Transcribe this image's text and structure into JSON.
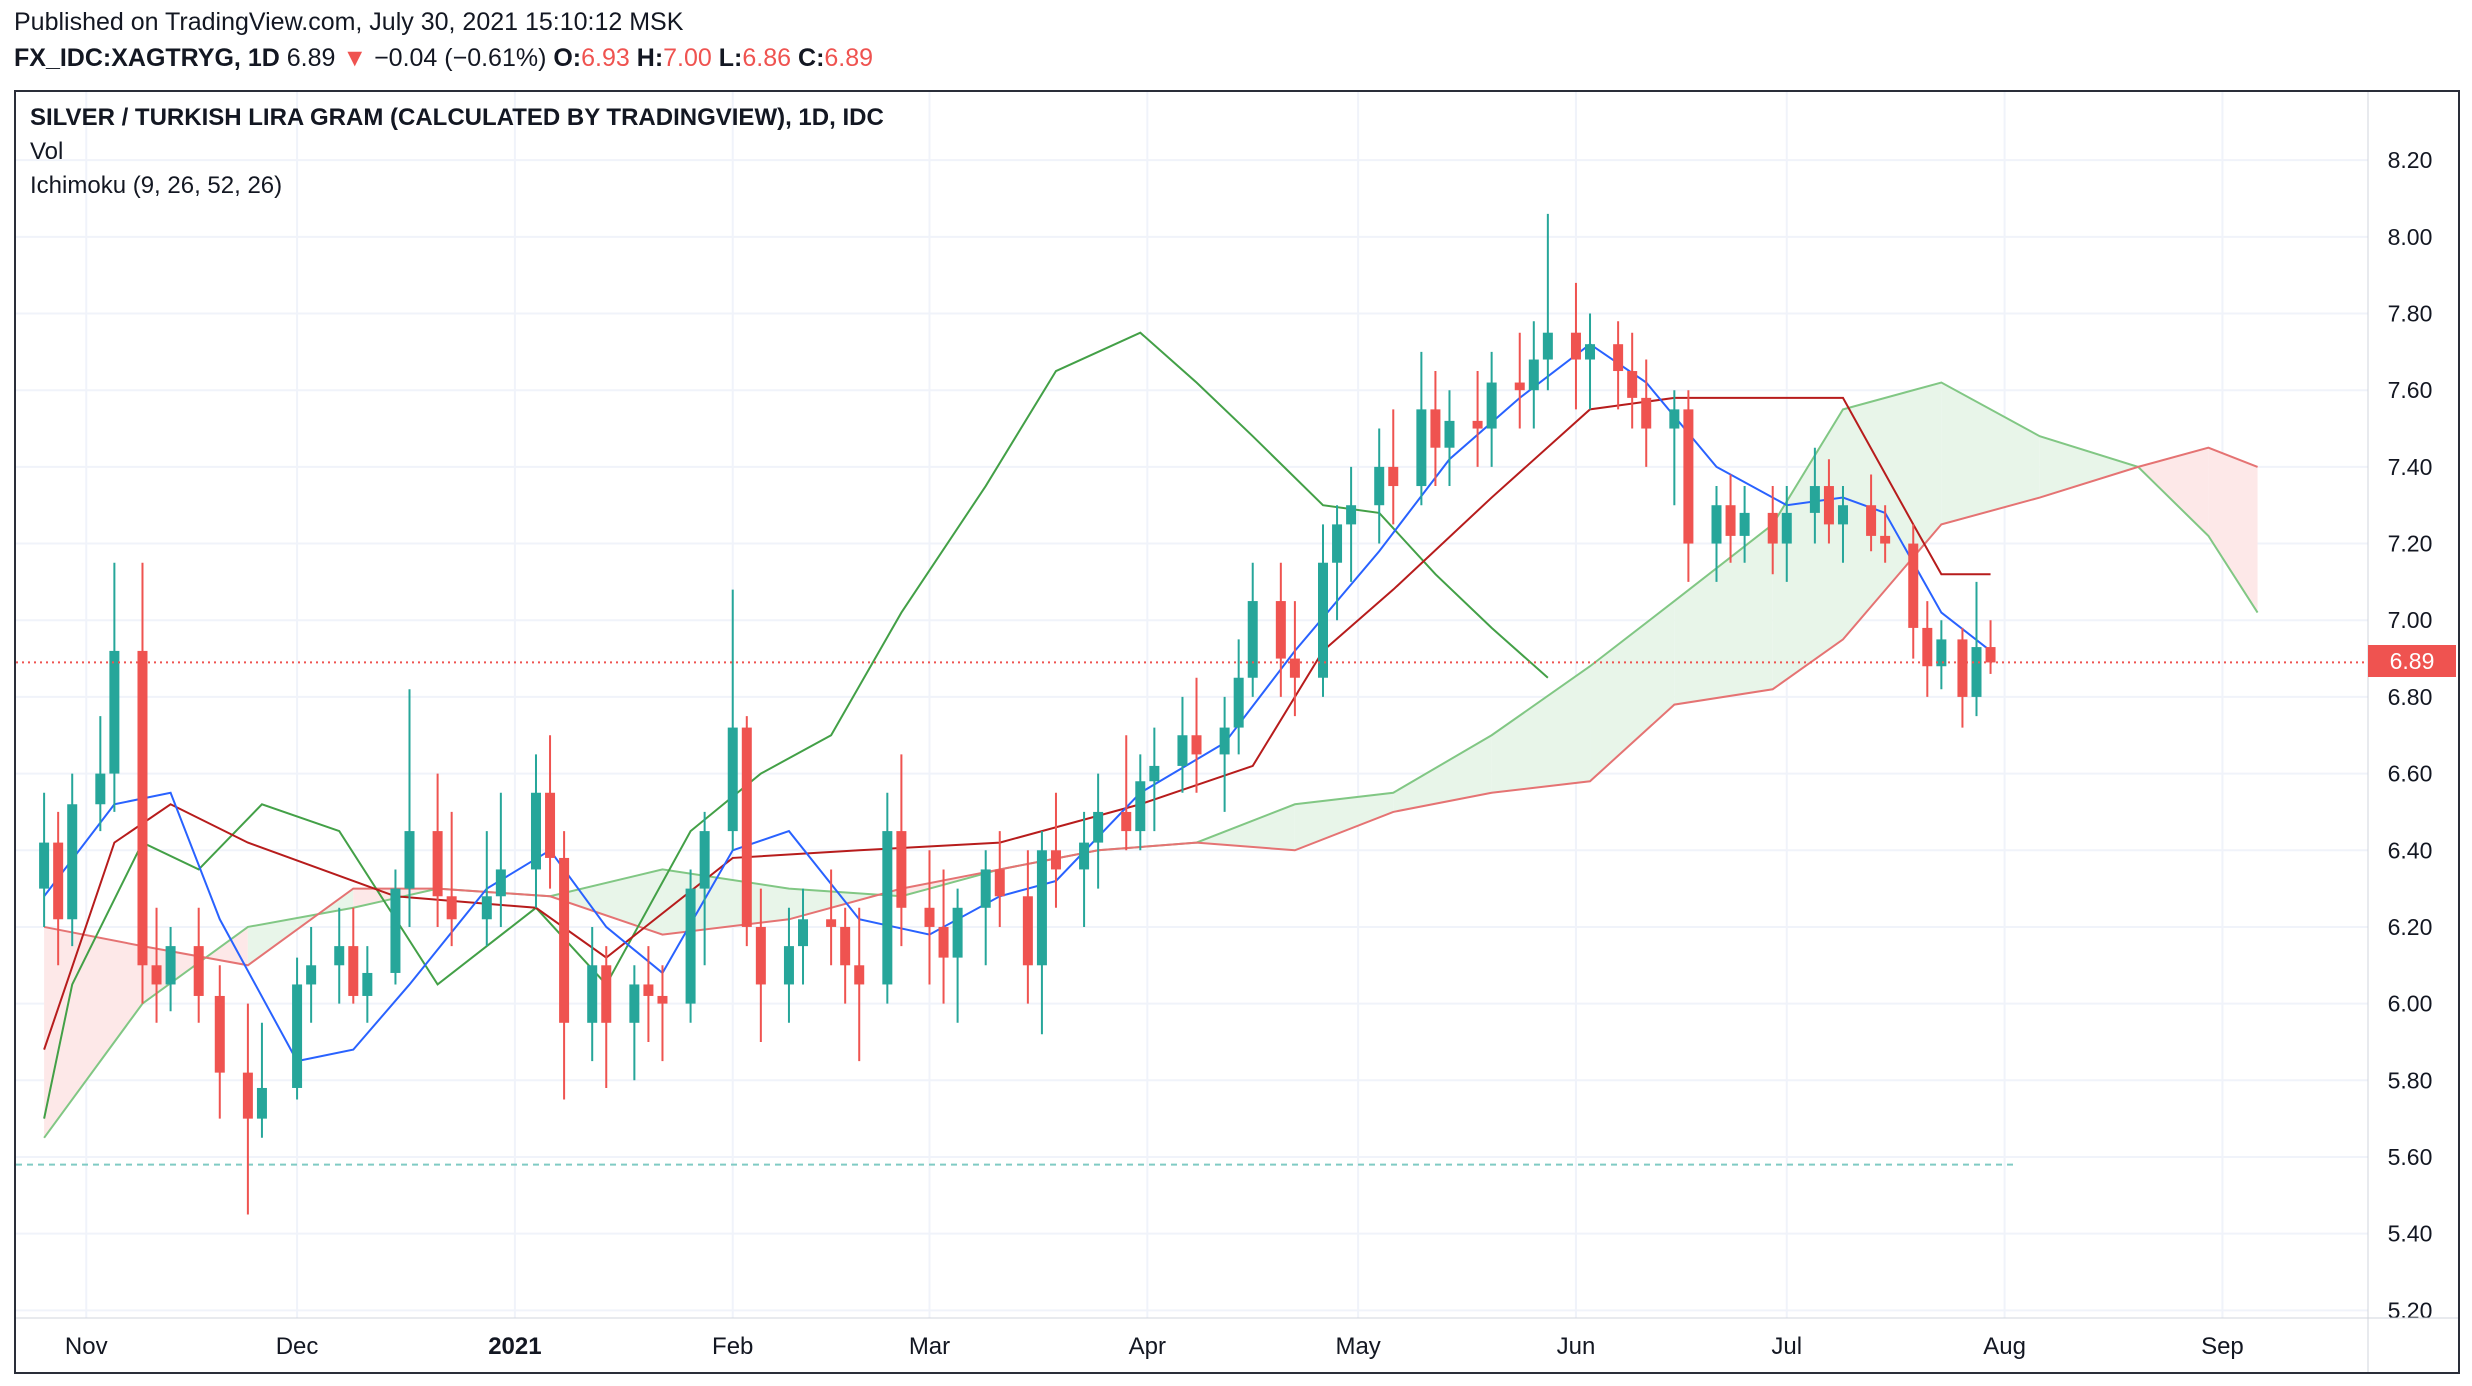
{
  "header": {
    "published": "Published on TradingView.com, July 30, 2021 15:10:12 MSK",
    "symbol": "FX_IDC:XAGTRYG, 1D",
    "last": "6.89",
    "change_arrow": "▼",
    "change": "−0.04 (−0.61%)",
    "o_label": "O:",
    "o": "6.93",
    "h_label": "H:",
    "h": "7.00",
    "l_label": "L:",
    "l": "6.86",
    "c_label": "C:",
    "c": "6.89"
  },
  "legend": {
    "title": "SILVER / TURKISH LIRA GRAM (CALCULATED BY TRADINGVIEW), 1D, IDC",
    "vol": "Vol",
    "ichimoku": "Ichimoku (9, 26, 52, 26)"
  },
  "colors": {
    "up": "#26a69a",
    "down": "#ef5350",
    "conversion": "#2962ff",
    "base": "#b71c1c",
    "lagging": "#43a047",
    "cloud_bull": "#e8f5e9",
    "cloud_bear": "#fde8e8",
    "grid": "#f0f3fa",
    "last_price_line": "#ef5350"
  },
  "chart_data": {
    "type": "candlestick",
    "title": "SILVER / TURKISH LIRA GRAM (CALCULATED BY TRADINGVIEW), 1D, IDC",
    "ylim": [
      5.2,
      8.3
    ],
    "y_ticks": [
      "5.20",
      "5.40",
      "5.60",
      "5.80",
      "6.00",
      "6.20",
      "6.40",
      "6.60",
      "6.80",
      "7.00",
      "7.20",
      "7.40",
      "7.60",
      "7.80",
      "8.00",
      "8.20"
    ],
    "x_ticks": [
      "Nov",
      "Dec",
      "2021",
      "Feb",
      "Mar",
      "Apr",
      "May",
      "Jun",
      "Jul",
      "Aug",
      "Sep"
    ],
    "last_price": 6.89,
    "last_price_label": "6.89",
    "dashed_level": 5.58,
    "candles": [
      {
        "t": "2020-10-26",
        "o": 6.3,
        "h": 6.55,
        "l": 6.2,
        "c": 6.42
      },
      {
        "t": "2020-10-28",
        "o": 6.42,
        "h": 6.5,
        "l": 6.1,
        "c": 6.22
      },
      {
        "t": "2020-10-30",
        "o": 6.22,
        "h": 6.6,
        "l": 6.15,
        "c": 6.52
      },
      {
        "t": "2020-11-03",
        "o": 6.52,
        "h": 6.75,
        "l": 6.45,
        "c": 6.6
      },
      {
        "t": "2020-11-05",
        "o": 6.6,
        "h": 7.15,
        "l": 6.5,
        "c": 6.92
      },
      {
        "t": "2020-11-09",
        "o": 6.92,
        "h": 7.15,
        "l": 6.0,
        "c": 6.1
      },
      {
        "t": "2020-11-11",
        "o": 6.1,
        "h": 6.25,
        "l": 5.95,
        "c": 6.05
      },
      {
        "t": "2020-11-13",
        "o": 6.05,
        "h": 6.2,
        "l": 5.98,
        "c": 6.15
      },
      {
        "t": "2020-11-17",
        "o": 6.15,
        "h": 6.25,
        "l": 5.95,
        "c": 6.02
      },
      {
        "t": "2020-11-20",
        "o": 6.02,
        "h": 6.1,
        "l": 5.7,
        "c": 5.82
      },
      {
        "t": "2020-11-24",
        "o": 5.82,
        "h": 6.0,
        "l": 5.45,
        "c": 5.7
      },
      {
        "t": "2020-11-26",
        "o": 5.7,
        "h": 5.95,
        "l": 5.65,
        "c": 5.78
      },
      {
        "t": "2020-12-01",
        "o": 5.78,
        "h": 6.12,
        "l": 5.75,
        "c": 6.05
      },
      {
        "t": "2020-12-03",
        "o": 6.05,
        "h": 6.2,
        "l": 5.95,
        "c": 6.1
      },
      {
        "t": "2020-12-07",
        "o": 6.1,
        "h": 6.25,
        "l": 6.0,
        "c": 6.15
      },
      {
        "t": "2020-12-09",
        "o": 6.15,
        "h": 6.25,
        "l": 6.0,
        "c": 6.02
      },
      {
        "t": "2020-12-11",
        "o": 6.02,
        "h": 6.15,
        "l": 5.95,
        "c": 6.08
      },
      {
        "t": "2020-12-15",
        "o": 6.08,
        "h": 6.35,
        "l": 6.05,
        "c": 6.3
      },
      {
        "t": "2020-12-17",
        "o": 6.3,
        "h": 6.82,
        "l": 6.2,
        "c": 6.45
      },
      {
        "t": "2020-12-21",
        "o": 6.45,
        "h": 6.6,
        "l": 6.2,
        "c": 6.28
      },
      {
        "t": "2020-12-23",
        "o": 6.28,
        "h": 6.5,
        "l": 6.15,
        "c": 6.22
      },
      {
        "t": "2020-12-28",
        "o": 6.22,
        "h": 6.45,
        "l": 6.15,
        "c": 6.28
      },
      {
        "t": "2020-12-30",
        "o": 6.28,
        "h": 6.55,
        "l": 6.2,
        "c": 6.35
      },
      {
        "t": "2021-01-04",
        "o": 6.35,
        "h": 6.65,
        "l": 6.25,
        "c": 6.55
      },
      {
        "t": "2021-01-06",
        "o": 6.55,
        "h": 6.7,
        "l": 6.3,
        "c": 6.38
      },
      {
        "t": "2021-01-08",
        "o": 6.38,
        "h": 6.45,
        "l": 5.75,
        "c": 5.95
      },
      {
        "t": "2021-01-12",
        "o": 5.95,
        "h": 6.2,
        "l": 5.85,
        "c": 6.1
      },
      {
        "t": "2021-01-14",
        "o": 6.1,
        "h": 6.15,
        "l": 5.78,
        "c": 5.95
      },
      {
        "t": "2021-01-18",
        "o": 5.95,
        "h": 6.1,
        "l": 5.8,
        "c": 6.05
      },
      {
        "t": "2021-01-20",
        "o": 6.05,
        "h": 6.15,
        "l": 5.9,
        "c": 6.02
      },
      {
        "t": "2021-01-22",
        "o": 6.02,
        "h": 6.1,
        "l": 5.85,
        "c": 6.0
      },
      {
        "t": "2021-01-26",
        "o": 6.0,
        "h": 6.35,
        "l": 5.95,
        "c": 6.3
      },
      {
        "t": "2021-01-28",
        "o": 6.3,
        "h": 6.5,
        "l": 6.1,
        "c": 6.45
      },
      {
        "t": "2021-02-01",
        "o": 6.45,
        "h": 7.08,
        "l": 6.4,
        "c": 6.72
      },
      {
        "t": "2021-02-03",
        "o": 6.72,
        "h": 6.75,
        "l": 6.15,
        "c": 6.2
      },
      {
        "t": "2021-02-05",
        "o": 6.2,
        "h": 6.3,
        "l": 5.9,
        "c": 6.05
      },
      {
        "t": "2021-02-09",
        "o": 6.05,
        "h": 6.25,
        "l": 5.95,
        "c": 6.15
      },
      {
        "t": "2021-02-11",
        "o": 6.15,
        "h": 6.3,
        "l": 6.05,
        "c": 6.22
      },
      {
        "t": "2021-02-15",
        "o": 6.22,
        "h": 6.35,
        "l": 6.1,
        "c": 6.2
      },
      {
        "t": "2021-02-17",
        "o": 6.2,
        "h": 6.25,
        "l": 6.0,
        "c": 6.1
      },
      {
        "t": "2021-02-19",
        "o": 6.1,
        "h": 6.25,
        "l": 5.85,
        "c": 6.05
      },
      {
        "t": "2021-02-23",
        "o": 6.05,
        "h": 6.55,
        "l": 6.0,
        "c": 6.45
      },
      {
        "t": "2021-02-25",
        "o": 6.45,
        "h": 6.65,
        "l": 6.15,
        "c": 6.25
      },
      {
        "t": "2021-03-01",
        "o": 6.25,
        "h": 6.4,
        "l": 6.05,
        "c": 6.2
      },
      {
        "t": "2021-03-03",
        "o": 6.2,
        "h": 6.35,
        "l": 6.0,
        "c": 6.12
      },
      {
        "t": "2021-03-05",
        "o": 6.12,
        "h": 6.3,
        "l": 5.95,
        "c": 6.25
      },
      {
        "t": "2021-03-09",
        "o": 6.25,
        "h": 6.4,
        "l": 6.1,
        "c": 6.35
      },
      {
        "t": "2021-03-11",
        "o": 6.35,
        "h": 6.45,
        "l": 6.2,
        "c": 6.28
      },
      {
        "t": "2021-03-15",
        "o": 6.28,
        "h": 6.4,
        "l": 6.0,
        "c": 6.1
      },
      {
        "t": "2021-03-17",
        "o": 6.1,
        "h": 6.45,
        "l": 5.92,
        "c": 6.4
      },
      {
        "t": "2021-03-19",
        "o": 6.4,
        "h": 6.55,
        "l": 6.25,
        "c": 6.35
      },
      {
        "t": "2021-03-23",
        "o": 6.35,
        "h": 6.5,
        "l": 6.2,
        "c": 6.42
      },
      {
        "t": "2021-03-25",
        "o": 6.42,
        "h": 6.6,
        "l": 6.3,
        "c": 6.5
      },
      {
        "t": "2021-03-29",
        "o": 6.5,
        "h": 6.7,
        "l": 6.4,
        "c": 6.45
      },
      {
        "t": "2021-03-31",
        "o": 6.45,
        "h": 6.65,
        "l": 6.4,
        "c": 6.58
      },
      {
        "t": "2021-04-02",
        "o": 6.58,
        "h": 6.72,
        "l": 6.45,
        "c": 6.62
      },
      {
        "t": "2021-04-06",
        "o": 6.62,
        "h": 6.8,
        "l": 6.55,
        "c": 6.7
      },
      {
        "t": "2021-04-08",
        "o": 6.7,
        "h": 6.85,
        "l": 6.55,
        "c": 6.65
      },
      {
        "t": "2021-04-12",
        "o": 6.65,
        "h": 6.8,
        "l": 6.5,
        "c": 6.72
      },
      {
        "t": "2021-04-14",
        "o": 6.72,
        "h": 6.95,
        "l": 6.65,
        "c": 6.85
      },
      {
        "t": "2021-04-16",
        "o": 6.85,
        "h": 7.15,
        "l": 6.8,
        "c": 7.05
      },
      {
        "t": "2021-04-20",
        "o": 7.05,
        "h": 7.15,
        "l": 6.8,
        "c": 6.9
      },
      {
        "t": "2021-04-22",
        "o": 6.9,
        "h": 7.05,
        "l": 6.75,
        "c": 6.85
      },
      {
        "t": "2021-04-26",
        "o": 6.85,
        "h": 7.25,
        "l": 6.8,
        "c": 7.15
      },
      {
        "t": "2021-04-28",
        "o": 7.15,
        "h": 7.3,
        "l": 7.0,
        "c": 7.25
      },
      {
        "t": "2021-04-30",
        "o": 7.25,
        "h": 7.4,
        "l": 7.1,
        "c": 7.3
      },
      {
        "t": "2021-05-04",
        "o": 7.3,
        "h": 7.5,
        "l": 7.2,
        "c": 7.4
      },
      {
        "t": "2021-05-06",
        "o": 7.4,
        "h": 7.55,
        "l": 7.25,
        "c": 7.35
      },
      {
        "t": "2021-05-10",
        "o": 7.35,
        "h": 7.7,
        "l": 7.3,
        "c": 7.55
      },
      {
        "t": "2021-05-12",
        "o": 7.55,
        "h": 7.65,
        "l": 7.35,
        "c": 7.45
      },
      {
        "t": "2021-05-14",
        "o": 7.45,
        "h": 7.6,
        "l": 7.35,
        "c": 7.52
      },
      {
        "t": "2021-05-18",
        "o": 7.52,
        "h": 7.65,
        "l": 7.4,
        "c": 7.5
      },
      {
        "t": "2021-05-20",
        "o": 7.5,
        "h": 7.7,
        "l": 7.4,
        "c": 7.62
      },
      {
        "t": "2021-05-24",
        "o": 7.62,
        "h": 7.75,
        "l": 7.5,
        "c": 7.6
      },
      {
        "t": "2021-05-26",
        "o": 7.6,
        "h": 7.78,
        "l": 7.5,
        "c": 7.68
      },
      {
        "t": "2021-05-28",
        "o": 7.68,
        "h": 8.06,
        "l": 7.6,
        "c": 7.75
      },
      {
        "t": "2021-06-01",
        "o": 7.75,
        "h": 7.88,
        "l": 7.55,
        "c": 7.68
      },
      {
        "t": "2021-06-03",
        "o": 7.68,
        "h": 7.8,
        "l": 7.55,
        "c": 7.72
      },
      {
        "t": "2021-06-07",
        "o": 7.72,
        "h": 7.78,
        "l": 7.55,
        "c": 7.65
      },
      {
        "t": "2021-06-09",
        "o": 7.65,
        "h": 7.75,
        "l": 7.5,
        "c": 7.58
      },
      {
        "t": "2021-06-11",
        "o": 7.58,
        "h": 7.68,
        "l": 7.4,
        "c": 7.5
      },
      {
        "t": "2021-06-15",
        "o": 7.5,
        "h": 7.6,
        "l": 7.3,
        "c": 7.55
      },
      {
        "t": "2021-06-17",
        "o": 7.55,
        "h": 7.6,
        "l": 7.1,
        "c": 7.2
      },
      {
        "t": "2021-06-21",
        "o": 7.2,
        "h": 7.35,
        "l": 7.1,
        "c": 7.3
      },
      {
        "t": "2021-06-23",
        "o": 7.3,
        "h": 7.38,
        "l": 7.15,
        "c": 7.22
      },
      {
        "t": "2021-06-25",
        "o": 7.22,
        "h": 7.35,
        "l": 7.15,
        "c": 7.28
      },
      {
        "t": "2021-06-29",
        "o": 7.28,
        "h": 7.35,
        "l": 7.12,
        "c": 7.2
      },
      {
        "t": "2021-07-01",
        "o": 7.2,
        "h": 7.35,
        "l": 7.1,
        "c": 7.28
      },
      {
        "t": "2021-07-05",
        "o": 7.28,
        "h": 7.45,
        "l": 7.2,
        "c": 7.35
      },
      {
        "t": "2021-07-07",
        "o": 7.35,
        "h": 7.42,
        "l": 7.2,
        "c": 7.25
      },
      {
        "t": "2021-07-09",
        "o": 7.25,
        "h": 7.35,
        "l": 7.15,
        "c": 7.3
      },
      {
        "t": "2021-07-13",
        "o": 7.3,
        "h": 7.38,
        "l": 7.18,
        "c": 7.22
      },
      {
        "t": "2021-07-15",
        "o": 7.22,
        "h": 7.3,
        "l": 7.15,
        "c": 7.2
      },
      {
        "t": "2021-07-19",
        "o": 7.2,
        "h": 7.25,
        "l": 6.9,
        "c": 6.98
      },
      {
        "t": "2021-07-21",
        "o": 6.98,
        "h": 7.05,
        "l": 6.8,
        "c": 6.88
      },
      {
        "t": "2021-07-23",
        "o": 6.88,
        "h": 7.0,
        "l": 6.82,
        "c": 6.95
      },
      {
        "t": "2021-07-26",
        "o": 6.95,
        "h": 6.98,
        "l": 6.72,
        "c": 6.8
      },
      {
        "t": "2021-07-28",
        "o": 6.8,
        "h": 7.1,
        "l": 6.75,
        "c": 6.93
      },
      {
        "t": "2021-07-30",
        "o": 6.93,
        "h": 7.0,
        "l": 6.86,
        "c": 6.89
      }
    ],
    "conversion_line": [
      [
        "2020-10-26",
        6.28
      ],
      [
        "2020-11-05",
        6.52
      ],
      [
        "2020-11-13",
        6.55
      ],
      [
        "2020-11-20",
        6.22
      ],
      [
        "2020-12-01",
        5.85
      ],
      [
        "2020-12-09",
        5.88
      ],
      [
        "2020-12-17",
        6.05
      ],
      [
        "2020-12-28",
        6.3
      ],
      [
        "2021-01-06",
        6.4
      ],
      [
        "2021-01-14",
        6.2
      ],
      [
        "2021-01-22",
        6.08
      ],
      [
        "2021-02-01",
        6.4
      ],
      [
        "2021-02-09",
        6.45
      ],
      [
        "2021-02-19",
        6.22
      ],
      [
        "2021-03-01",
        6.18
      ],
      [
        "2021-03-11",
        6.28
      ],
      [
        "2021-03-19",
        6.32
      ],
      [
        "2021-03-31",
        6.55
      ],
      [
        "2021-04-12",
        6.68
      ],
      [
        "2021-04-22",
        6.92
      ],
      [
        "2021-05-04",
        7.18
      ],
      [
        "2021-05-14",
        7.42
      ],
      [
        "2021-05-24",
        7.58
      ],
      [
        "2021-06-03",
        7.72
      ],
      [
        "2021-06-11",
        7.62
      ],
      [
        "2021-06-21",
        7.4
      ],
      [
        "2021-07-01",
        7.3
      ],
      [
        "2021-07-09",
        7.32
      ],
      [
        "2021-07-15",
        7.28
      ],
      [
        "2021-07-23",
        7.02
      ],
      [
        "2021-07-30",
        6.92
      ]
    ],
    "base_line": [
      [
        "2020-10-26",
        5.88
      ],
      [
        "2020-11-05",
        6.42
      ],
      [
        "2020-11-13",
        6.52
      ],
      [
        "2020-11-24",
        6.42
      ],
      [
        "2020-12-15",
        6.28
      ],
      [
        "2021-01-04",
        6.25
      ],
      [
        "2021-01-14",
        6.12
      ],
      [
        "2021-02-01",
        6.38
      ],
      [
        "2021-02-19",
        6.4
      ],
      [
        "2021-03-11",
        6.42
      ],
      [
        "2021-03-31",
        6.52
      ],
      [
        "2021-04-16",
        6.62
      ],
      [
        "2021-04-26",
        6.92
      ],
      [
        "2021-05-06",
        7.08
      ],
      [
        "2021-05-20",
        7.32
      ],
      [
        "2021-06-03",
        7.55
      ],
      [
        "2021-06-15",
        7.58
      ],
      [
        "2021-07-09",
        7.58
      ],
      [
        "2021-07-19",
        7.25
      ],
      [
        "2021-07-23",
        7.12
      ],
      [
        "2021-07-30",
        7.12
      ]
    ],
    "lagging_span": [
      [
        "2020-10-26",
        5.7
      ],
      [
        "2020-10-30",
        6.05
      ],
      [
        "2020-11-09",
        6.42
      ],
      [
        "2020-11-17",
        6.35
      ],
      [
        "2020-11-26",
        6.52
      ],
      [
        "2020-12-07",
        6.45
      ],
      [
        "2020-12-21",
        6.05
      ],
      [
        "2021-01-04",
        6.25
      ],
      [
        "2021-01-14",
        6.05
      ],
      [
        "2021-01-26",
        6.45
      ],
      [
        "2021-02-05",
        6.6
      ],
      [
        "2021-02-15",
        6.7
      ],
      [
        "2021-02-25",
        7.02
      ],
      [
        "2021-03-09",
        7.35
      ],
      [
        "2021-03-19",
        7.65
      ],
      [
        "2021-03-31",
        7.75
      ],
      [
        "2021-04-08",
        7.62
      ],
      [
        "2021-04-16",
        7.48
      ],
      [
        "2021-04-26",
        7.3
      ],
      [
        "2021-05-04",
        7.28
      ],
      [
        "2021-05-12",
        7.12
      ],
      [
        "2021-05-20",
        6.98
      ],
      [
        "2021-05-28",
        6.85
      ]
    ],
    "cloud": [
      {
        "t": "2020-10-26",
        "a": 5.65,
        "b": 6.2
      },
      {
        "t": "2020-11-09",
        "a": 6.0,
        "b": 6.15
      },
      {
        "t": "2020-11-24",
        "a": 6.2,
        "b": 6.1
      },
      {
        "t": "2020-12-09",
        "a": 6.25,
        "b": 6.3
      },
      {
        "t": "2020-12-21",
        "a": 6.3,
        "b": 6.3
      },
      {
        "t": "2021-01-06",
        "a": 6.28,
        "b": 6.28
      },
      {
        "t": "2021-01-22",
        "a": 6.35,
        "b": 6.18
      },
      {
        "t": "2021-02-09",
        "a": 6.3,
        "b": 6.22
      },
      {
        "t": "2021-02-25",
        "a": 6.28,
        "b": 6.3
      },
      {
        "t": "2021-03-11",
        "a": 6.35,
        "b": 6.35
      },
      {
        "t": "2021-03-25",
        "a": 6.4,
        "b": 6.4
      },
      {
        "t": "2021-04-08",
        "a": 6.42,
        "b": 6.42
      },
      {
        "t": "2021-04-22",
        "a": 6.52,
        "b": 6.4
      },
      {
        "t": "2021-05-06",
        "a": 6.55,
        "b": 6.5
      },
      {
        "t": "2021-05-20",
        "a": 6.7,
        "b": 6.55
      },
      {
        "t": "2021-06-03",
        "a": 6.88,
        "b": 6.58
      },
      {
        "t": "2021-06-15",
        "a": 7.05,
        "b": 6.78
      },
      {
        "t": "2021-06-29",
        "a": 7.25,
        "b": 6.82
      },
      {
        "t": "2021-07-09",
        "a": 7.55,
        "b": 6.95
      },
      {
        "t": "2021-07-23",
        "a": 7.62,
        "b": 7.25
      },
      {
        "t": "2021-08-06",
        "a": 7.48,
        "b": 7.32
      },
      {
        "t": "2021-08-20",
        "a": 7.4,
        "b": 7.4
      },
      {
        "t": "2021-08-30",
        "a": 7.22,
        "b": 7.45
      },
      {
        "t": "2021-09-06",
        "a": 7.02,
        "b": 7.4
      }
    ]
  }
}
